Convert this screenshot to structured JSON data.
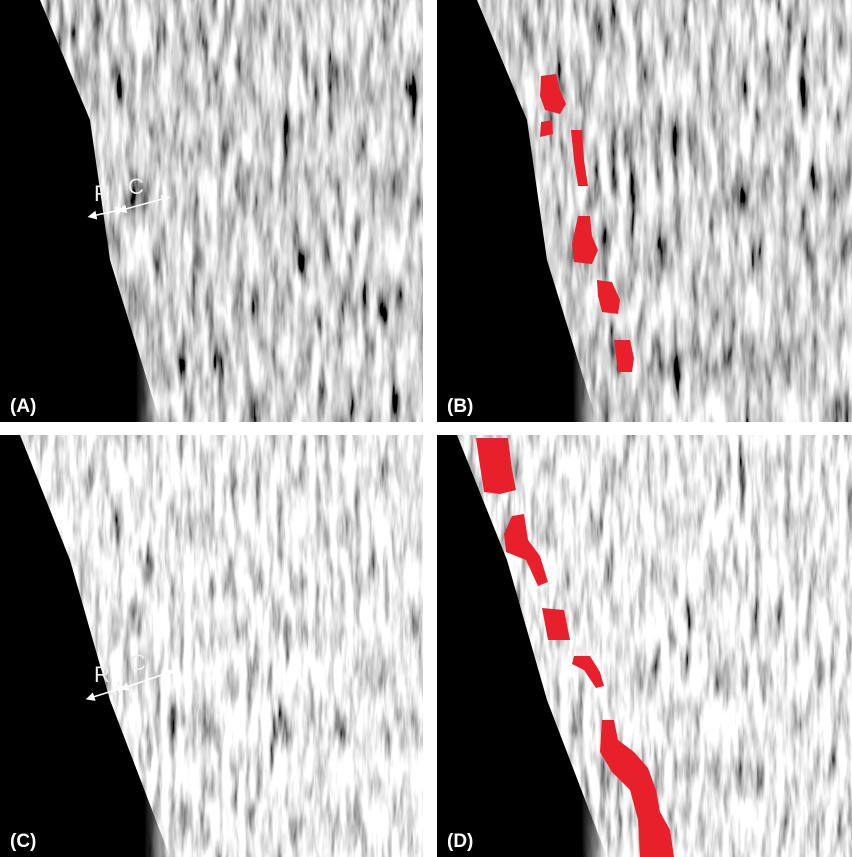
{
  "panels": [
    {
      "label": "(A)",
      "annotations": [
        "R",
        "C"
      ]
    },
    {
      "label": "(B)"
    },
    {
      "label": "(C)",
      "annotations": [
        "R",
        "C"
      ]
    },
    {
      "label": "(D)"
    }
  ]
}
